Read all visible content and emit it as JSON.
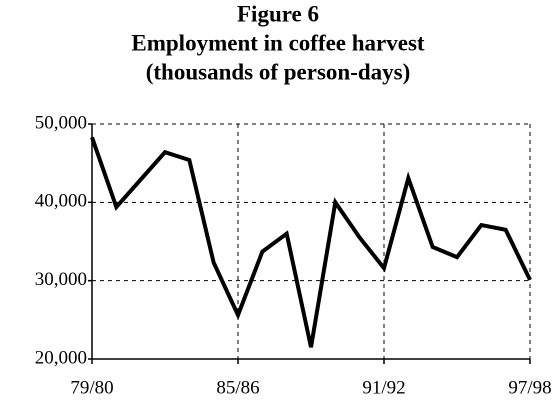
{
  "chart_data": {
    "type": "line",
    "title": [
      "Figure 6",
      "Employment in coffee harvest",
      "(thousands of person-days)"
    ],
    "categories": [
      "79/80",
      null,
      null,
      null,
      null,
      null,
      "85/86",
      null,
      null,
      null,
      null,
      null,
      "91/92",
      null,
      null,
      null,
      null,
      null,
      "97/98"
    ],
    "series": [
      {
        "color": "#000000",
        "values": [
          48300,
          39400,
          42900,
          46400,
          45400,
          32300,
          25600,
          33700,
          36000,
          21500,
          40000,
          35500,
          31600,
          43100,
          34300,
          33000,
          37100,
          36500,
          30100
        ]
      }
    ],
    "ylim": [
      20000,
      50000
    ],
    "yticks": [
      {
        "value": 20000,
        "label": "20,000"
      },
      {
        "value": 30000,
        "label": "30,000"
      },
      {
        "value": 40000,
        "label": "40,000"
      },
      {
        "value": 50000,
        "label": "50,000"
      }
    ],
    "grid": true
  }
}
